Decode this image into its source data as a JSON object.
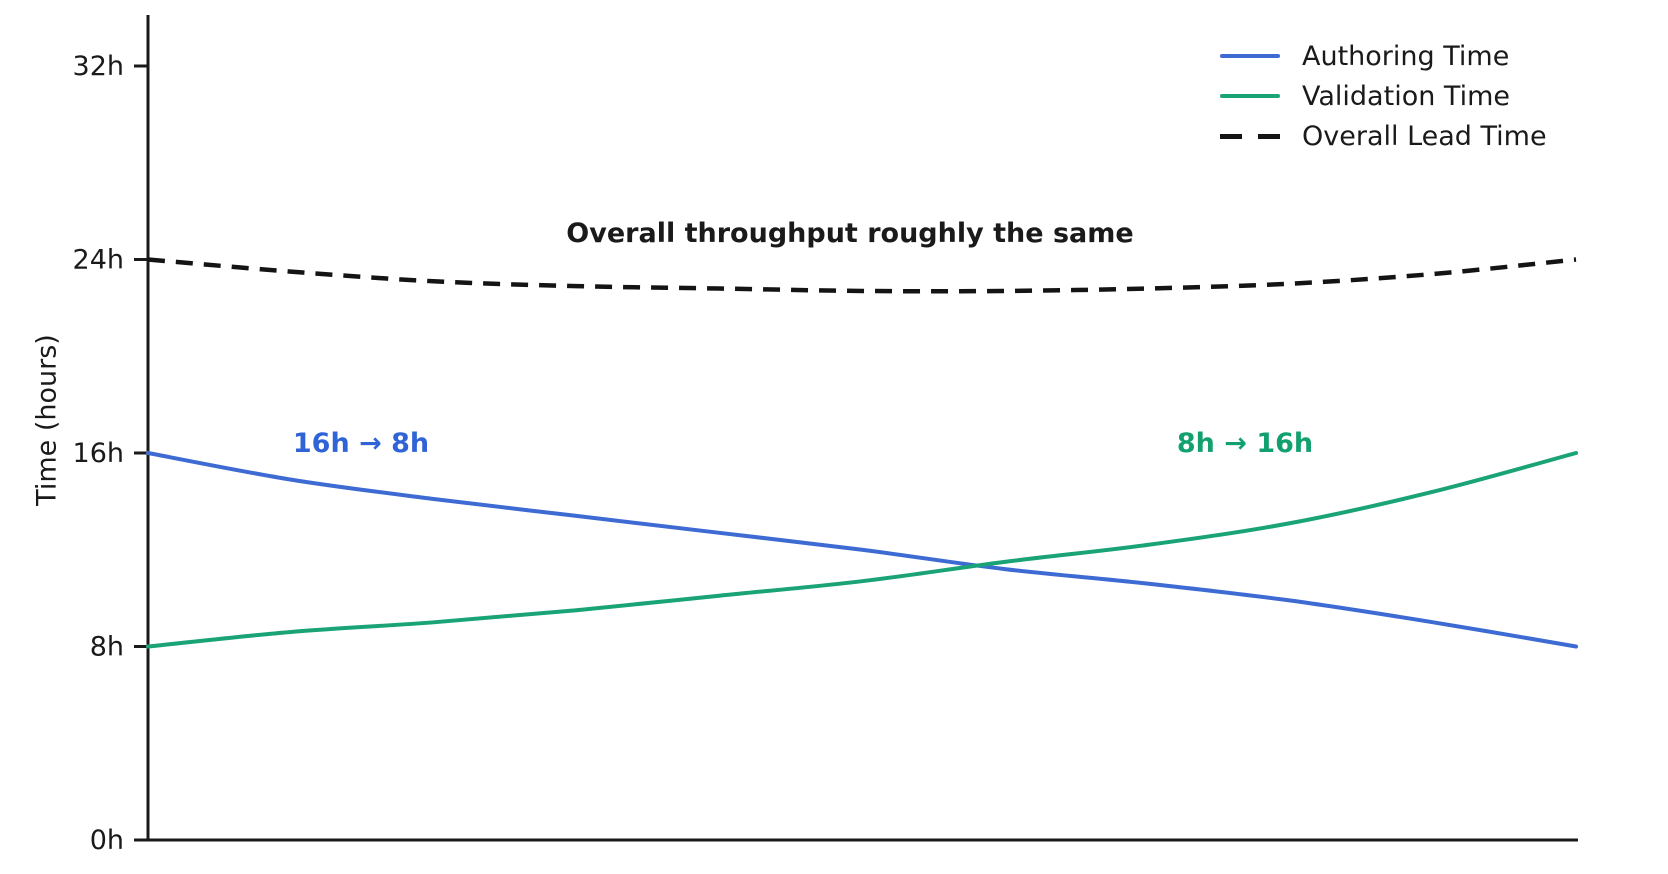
{
  "chart_data": {
    "type": "line",
    "title": "",
    "xlabel": "",
    "ylabel": "Time (hours)",
    "x": [
      0,
      1,
      2,
      3,
      4,
      5,
      6,
      7,
      8,
      9,
      10
    ],
    "xtick_labels_visible": false,
    "ylim": [
      0,
      34
    ],
    "yticks": [
      0,
      8,
      16,
      24,
      32
    ],
    "ytick_labels": [
      "0h",
      "8h",
      "16h",
      "24h",
      "32h"
    ],
    "grid": false,
    "legend_position": "upper right",
    "series": [
      {
        "name": "Authoring Time",
        "color": "#3D6BD3",
        "line_style": "solid",
        "values": [
          16.0,
          14.9,
          14.1,
          13.4,
          12.7,
          12.0,
          11.2,
          10.6,
          9.9,
          9.0,
          8.0
        ]
      },
      {
        "name": "Validation Time",
        "color": "#19A377",
        "line_style": "solid",
        "values": [
          8.0,
          8.6,
          9.0,
          9.5,
          10.1,
          10.7,
          11.5,
          12.2,
          13.1,
          14.4,
          16.0
        ]
      },
      {
        "name": "Overall Lead Time",
        "color": "#141414",
        "line_style": "dashed",
        "values": [
          24.0,
          23.5,
          23.1,
          22.9,
          22.8,
          22.7,
          22.7,
          22.8,
          23.0,
          23.4,
          24.0
        ]
      }
    ],
    "annotations": [
      {
        "id": "overall_note",
        "text": "Overall throughput roughly the same",
        "color": "#1a1a1a",
        "bold": true
      },
      {
        "id": "authoring_note",
        "text": "16h → 8h",
        "color": "#2F63D6",
        "bold": true
      },
      {
        "id": "validation_note",
        "text": "8h → 16h",
        "color": "#12A06E",
        "bold": true
      }
    ],
    "axis_color": "#1a1a1a"
  }
}
